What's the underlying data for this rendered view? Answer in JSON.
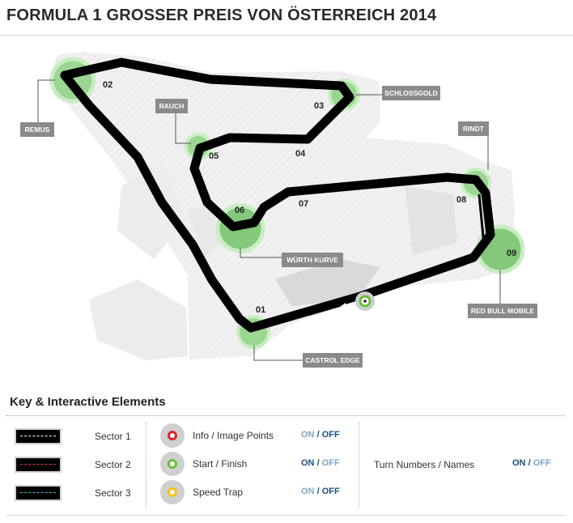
{
  "title": "FORMULA 1 GROSSER PREIS VON ÖSTERREICH 2014",
  "track": {
    "turn_numbers": [
      "01",
      "02",
      "03",
      "04",
      "05",
      "06",
      "07",
      "08",
      "09"
    ],
    "corner_names": {
      "remus": "REMUS",
      "rauch": "RAUCH",
      "schlossgold": "SCHLOSSGOLD",
      "rindt": "RINDT",
      "wurth": "WÜRTH KURVE",
      "redbull": "RED BULL MOBILE",
      "castrol": "CASTROL EDGE"
    },
    "colors": {
      "track": "#000000",
      "zone": "#84c87c",
      "start_finish": "#6abf3a"
    }
  },
  "key": {
    "title": "Key & Interactive Elements",
    "sectors": [
      {
        "label": "Sector 1",
        "dash_color": "#ffffff"
      },
      {
        "label": "Sector 2",
        "dash_color": "#e23b3b"
      },
      {
        "label": "Sector 3",
        "dash_color": "#3fc8d8"
      }
    ],
    "elements": [
      {
        "label": "Info / Image Points",
        "icon": "info-point-icon",
        "ring_color": "#d9262b",
        "on": "ON",
        "sep": "/",
        "off": "OFF",
        "state": "off"
      },
      {
        "label": "Start / Finish",
        "icon": "start-finish-icon",
        "ring_color": "#6abf3a",
        "on": "ON",
        "sep": "/",
        "off": "OFF",
        "state": "on"
      },
      {
        "label": "Speed Trap",
        "icon": "speed-trap-icon",
        "ring_color": "#f2c318",
        "on": "ON",
        "sep": "/",
        "off": "OFF",
        "state": "off"
      }
    ],
    "turn_toggle": {
      "label": "Turn Numbers / Names",
      "on": "ON",
      "sep": "/",
      "off": "OFF",
      "state": "on"
    }
  }
}
